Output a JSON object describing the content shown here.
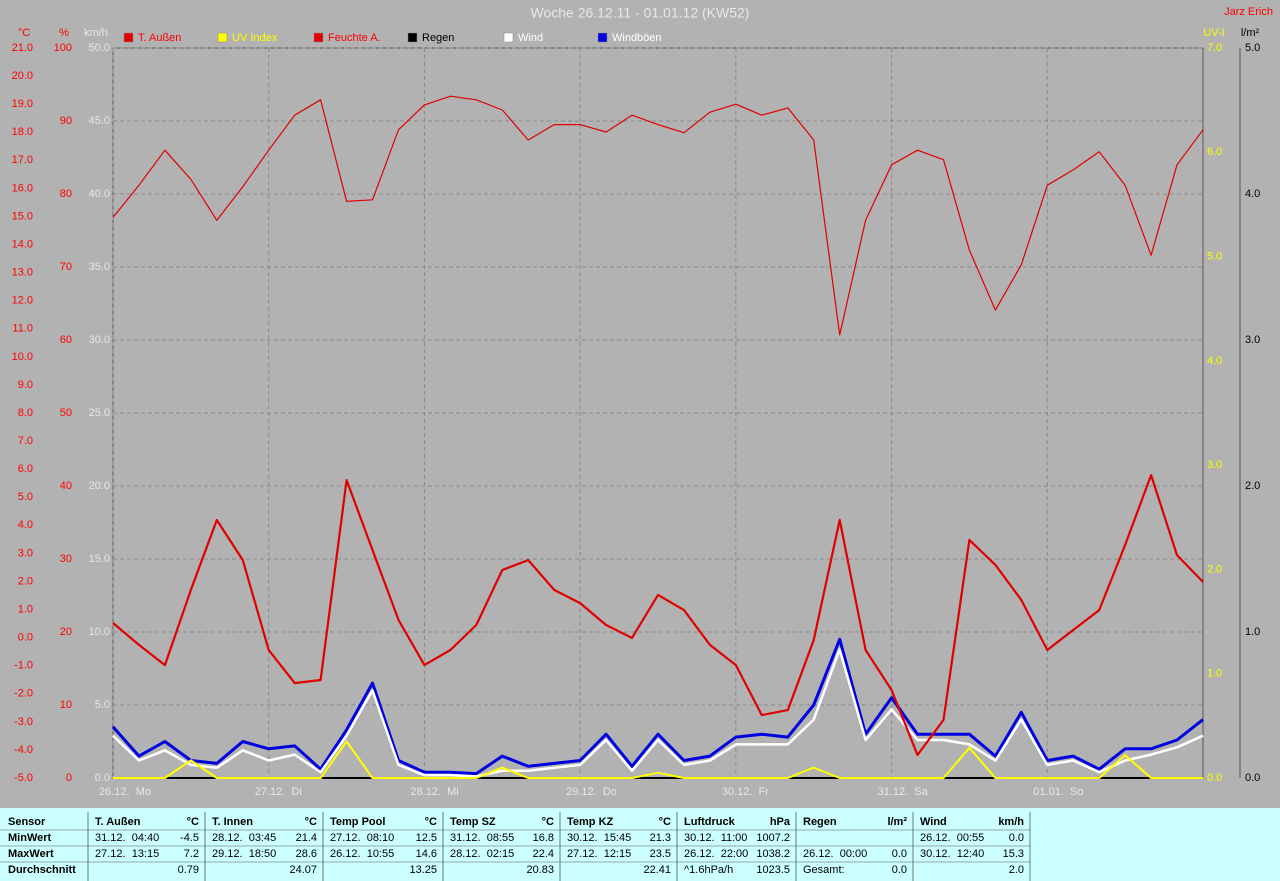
{
  "chart_data": {
    "type": "line",
    "title": "Woche 26.12.11 - 01.01.12 (KW52)",
    "author": "Jarz Erich",
    "x": [
      0,
      4,
      8,
      12,
      16,
      20,
      24,
      28,
      32,
      36,
      40,
      44,
      48,
      52,
      56,
      60,
      64,
      68,
      72,
      76,
      80,
      84,
      88,
      92,
      96,
      100,
      104,
      108,
      112,
      116,
      120,
      124,
      128,
      132,
      136,
      140,
      144,
      148,
      152,
      156,
      160,
      164,
      168
    ],
    "xlim": [
      0,
      168
    ],
    "xticks": [
      {
        "value": 0,
        "label": "26.12.  Mo"
      },
      {
        "value": 24,
        "label": "27.12.  Di"
      },
      {
        "value": 48,
        "label": "28.12.  Mi"
      },
      {
        "value": 72,
        "label": "29.12.  Do"
      },
      {
        "value": 96,
        "label": "30.12.  Fr"
      },
      {
        "value": 120,
        "label": "31.12.  Sa"
      },
      {
        "value": 144,
        "label": "01.01.  So"
      }
    ],
    "grid": true,
    "axes": [
      {
        "unit": "°C",
        "color": "#ff0000",
        "side": "left",
        "lim": [
          -5,
          21
        ],
        "ticks": [
          {
            "value": -5,
            "label": "-5.0"
          },
          {
            "value": -4,
            "label": "-4.0"
          },
          {
            "value": -3,
            "label": "-3.0"
          },
          {
            "value": -2,
            "label": "-2.0"
          },
          {
            "value": -1,
            "label": "-1.0"
          },
          {
            "value": 0,
            "label": "0.0"
          },
          {
            "value": 1,
            "label": "1.0"
          },
          {
            "value": 2,
            "label": "2.0"
          },
          {
            "value": 3,
            "label": "3.0"
          },
          {
            "value": 4,
            "label": "4.0"
          },
          {
            "value": 5,
            "label": "5.0"
          },
          {
            "value": 6,
            "label": "6.0"
          },
          {
            "value": 7,
            "label": "7.0"
          },
          {
            "value": 8,
            "label": "8.0"
          },
          {
            "value": 9,
            "label": "9.0"
          },
          {
            "value": 10,
            "label": "10.0"
          },
          {
            "value": 11,
            "label": "11.0"
          },
          {
            "value": 12,
            "label": "12.0"
          },
          {
            "value": 13,
            "label": "13.0"
          },
          {
            "value": 14,
            "label": "14.0"
          },
          {
            "value": 15,
            "label": "15.0"
          },
          {
            "value": 16,
            "label": "16.0"
          },
          {
            "value": 17,
            "label": "17.0"
          },
          {
            "value": 18,
            "label": "18.0"
          },
          {
            "value": 19,
            "label": "19.0"
          },
          {
            "value": 20,
            "label": "20.0"
          },
          {
            "value": 21,
            "label": "21.0"
          }
        ]
      },
      {
        "unit": "%",
        "color": "#ff0000",
        "side": "left",
        "lim": [
          0,
          100
        ],
        "ticks": [
          0,
          10,
          20,
          30,
          40,
          50,
          60,
          70,
          80,
          90,
          100
        ]
      },
      {
        "unit": "km/h",
        "color": "#e6e6e6",
        "side": "left",
        "lim": [
          0,
          50
        ],
        "ticks": [
          {
            "value": 0,
            "label": "0.0"
          },
          {
            "value": 5,
            "label": "5.0"
          },
          {
            "value": 10,
            "label": "10.0"
          },
          {
            "value": 15,
            "label": "15.0"
          },
          {
            "value": 20,
            "label": "20.0"
          },
          {
            "value": 25,
            "label": "25.0"
          },
          {
            "value": 30,
            "label": "30.0"
          },
          {
            "value": 35,
            "label": "35.0"
          },
          {
            "value": 40,
            "label": "40.0"
          },
          {
            "value": 45,
            "label": "45.0"
          },
          {
            "value": 50,
            "label": "50.0"
          }
        ]
      },
      {
        "unit": "UV-I",
        "color": "#ffff00",
        "side": "right",
        "lim": [
          0,
          7
        ],
        "ticks": [
          {
            "value": 0,
            "label": "0.0"
          },
          {
            "value": 1,
            "label": "1.0"
          },
          {
            "value": 2,
            "label": "2.0"
          },
          {
            "value": 3,
            "label": "3.0"
          },
          {
            "value": 4,
            "label": "4.0"
          },
          {
            "value": 5,
            "label": "5.0"
          },
          {
            "value": 6,
            "label": "6.0"
          },
          {
            "value": 7,
            "label": "7.0"
          }
        ]
      },
      {
        "unit": "l/m²",
        "color": "#000000",
        "side": "right",
        "lim": [
          0,
          5
        ],
        "ticks": [
          {
            "value": 0,
            "label": "0.0"
          },
          {
            "value": 1,
            "label": "1.0"
          },
          {
            "value": 2,
            "label": "2.0"
          },
          {
            "value": 3,
            "label": "3.0"
          },
          {
            "value": 4,
            "label": "4.0"
          },
          {
            "value": 5,
            "label": "5.0"
          }
        ]
      }
    ],
    "series": [
      {
        "name": "T. Außen",
        "color": "#e00000",
        "label_color": "#ff0000",
        "axis": 0,
        "width": 2.2,
        "values": [
          0.52,
          -0.26,
          -0.98,
          1.7,
          4.19,
          2.76,
          -0.44,
          -1.62,
          -1.51,
          5.61,
          3.12,
          0.63,
          -0.98,
          -0.44,
          0.45,
          2.41,
          2.76,
          1.7,
          1.23,
          0.45,
          -0.01,
          1.52,
          0.98,
          -0.26,
          -0.98,
          -2.76,
          -2.58,
          -0.09,
          4.19,
          -0.44,
          -1.87,
          -4.18,
          -2.93,
          3.48,
          2.59,
          1.34,
          -0.44,
          0.27,
          0.98,
          3.3,
          5.79,
          2.94,
          1.98
        ]
      },
      {
        "name": "UV Index",
        "color": "#ffff00",
        "label_color": "#ffff00",
        "axis": 3,
        "width": 2,
        "values": [
          0,
          0,
          0,
          0.17,
          0,
          0,
          0,
          0,
          0,
          0.35,
          0,
          0,
          0,
          0,
          0,
          0.1,
          0,
          0,
          0,
          0,
          0,
          0.05,
          0,
          0,
          0,
          0,
          0,
          0.1,
          0,
          0,
          0,
          0,
          0,
          0.29,
          0,
          0,
          0,
          0,
          0,
          0.22,
          0,
          0,
          0
        ]
      },
      {
        "name": "Feuchte A.",
        "color": "#e00000",
        "label_color": "#ff0000",
        "axis": 1,
        "width": 1.2,
        "values": [
          76.8,
          81.2,
          86,
          82,
          76.4,
          81,
          86,
          90.8,
          92.9,
          79,
          79.2,
          88.8,
          92.2,
          93.4,
          92.9,
          91.5,
          87.4,
          89.5,
          89.5,
          88.5,
          90.8,
          89.5,
          88.4,
          91.2,
          92.3,
          90.8,
          91.8,
          87.4,
          60.7,
          76.4,
          84,
          86,
          84.7,
          72.3,
          64.1,
          70.3,
          81.2,
          83.3,
          85.8,
          81.2,
          71.6,
          84,
          88.8
        ]
      },
      {
        "name": "Regen",
        "color": "#000000",
        "label_color": "#000000",
        "axis": 4,
        "width": 2,
        "values": [
          0,
          0,
          0,
          0,
          0,
          0,
          0,
          0,
          0,
          0,
          0,
          0,
          0,
          0,
          0,
          0,
          0,
          0,
          0,
          0,
          0,
          0,
          0,
          0,
          0,
          0,
          0,
          0,
          0,
          0,
          0,
          0,
          0,
          0,
          0,
          0,
          0,
          0,
          0,
          0,
          0,
          0,
          0
        ]
      },
      {
        "name": "Wind",
        "color": "#ffffff",
        "label_color": "#ffffff",
        "axis": 2,
        "width": 2.5,
        "values": [
          2.9,
          1.2,
          1.9,
          0.9,
          0.7,
          1.9,
          1.2,
          1.6,
          0.4,
          2.9,
          6,
          0.9,
          0.2,
          0.2,
          0.1,
          0.5,
          0.5,
          0.7,
          0.9,
          2.6,
          0.5,
          2.6,
          0.9,
          1.2,
          2.3,
          2.3,
          2.3,
          4,
          8.8,
          2.6,
          4.7,
          2.6,
          2.6,
          2.3,
          1.2,
          4,
          0.9,
          1.2,
          0.4,
          1.2,
          1.6,
          2.1,
          2.9
        ]
      },
      {
        "name": "Windböen",
        "color": "#0000e0",
        "label_color": "#ffffff",
        "axis": 2,
        "width": 3,
        "values": [
          3.5,
          1.5,
          2.5,
          1.2,
          1,
          2.5,
          2,
          2.2,
          0.6,
          3.3,
          6.5,
          1.2,
          0.4,
          0.4,
          0.3,
          1.5,
          0.8,
          1,
          1.2,
          3,
          0.8,
          3,
          1.2,
          1.5,
          2.8,
          3,
          2.8,
          5,
          9.5,
          3,
          5.5,
          3,
          3,
          3,
          1.5,
          4.5,
          1.2,
          1.5,
          0.6,
          2,
          2,
          2.6,
          4
        ]
      }
    ]
  },
  "stats": {
    "sensor_header": "Sensor",
    "row_labels": [
      "MinWert",
      "MaxWert",
      "Durchschnitt"
    ],
    "groups": [
      {
        "name": "T. Außen",
        "unit": "°C",
        "cells": [
          [
            "31.12.  04:40",
            "-4.5"
          ],
          [
            "27.12.  13:15",
            "7.2"
          ],
          [
            null,
            "0.79"
          ]
        ]
      },
      {
        "name": "T. Innen",
        "unit": "°C",
        "cells": [
          [
            "28.12.  03:45",
            "21.4"
          ],
          [
            "29.12.  18:50",
            "28.6"
          ],
          [
            null,
            "24.07"
          ]
        ]
      },
      {
        "name": "Temp Pool",
        "unit": "°C",
        "cells": [
          [
            "27.12.  08:10",
            "12.5"
          ],
          [
            "26.12.  10:55",
            "14.6"
          ],
          [
            null,
            "13.25"
          ]
        ]
      },
      {
        "name": "Temp SZ",
        "unit": "°C",
        "cells": [
          [
            "31.12.  08:55",
            "16.8"
          ],
          [
            "28.12.  02:15",
            "22.4"
          ],
          [
            null,
            "20.83"
          ]
        ]
      },
      {
        "name": "Temp KZ",
        "unit": "°C",
        "cells": [
          [
            "30.12.  15:45",
            "21.3"
          ],
          [
            "27.12.  12:15",
            "23.5"
          ],
          [
            null,
            "22.41"
          ]
        ]
      },
      {
        "name": "Luftdruck",
        "unit": "hPa",
        "cells": [
          [
            "30.12.  11:00",
            "1007.2"
          ],
          [
            "26.12.  22:00",
            "1038.2"
          ],
          [
            "^1.6hPa/h",
            "1023.5"
          ]
        ]
      },
      {
        "name": "Regen",
        "unit": "l/m²",
        "cells": [
          [
            null,
            null
          ],
          [
            "26.12.  00:00",
            "0.0"
          ],
          [
            "Gesamt:",
            "0.0"
          ]
        ]
      },
      {
        "name": "Wind",
        "unit": "km/h",
        "cells": [
          [
            "26.12.  00:55",
            "0.0"
          ],
          [
            "30.12.  12:40",
            "15.3"
          ],
          [
            null,
            "2.0"
          ]
        ]
      }
    ]
  }
}
